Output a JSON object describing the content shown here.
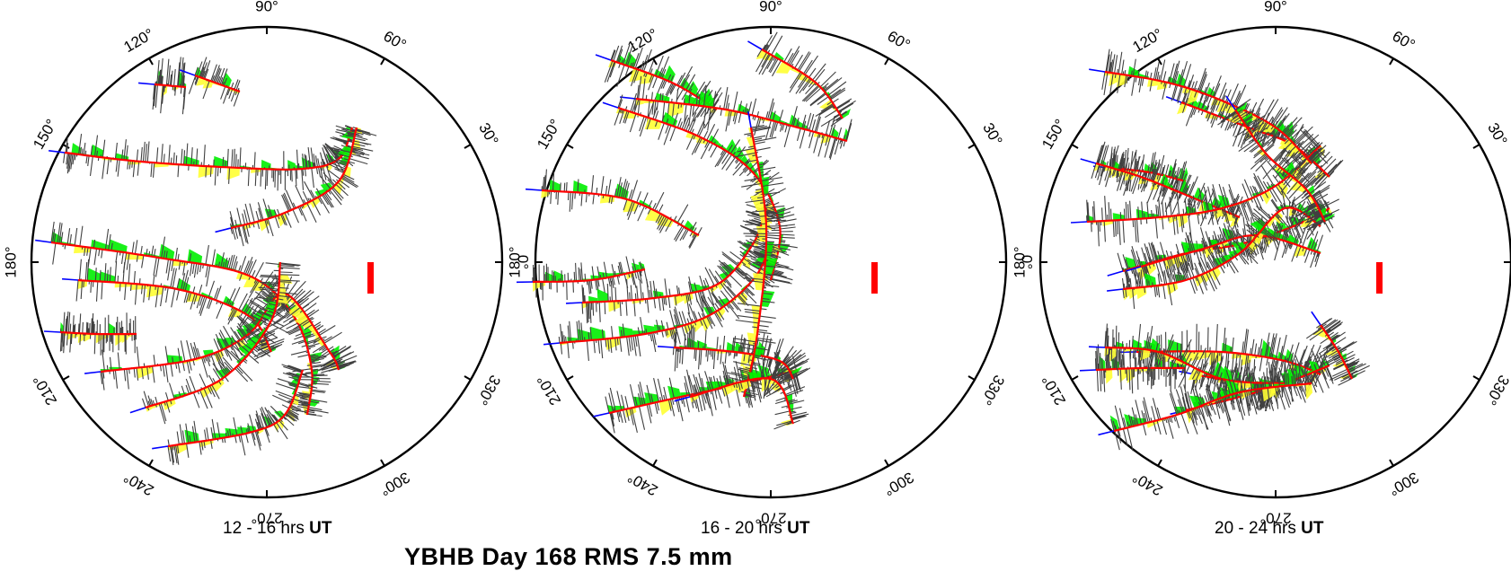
{
  "title": "YBHB Day 168 RMS 7.5 mm",
  "angle_labels": [
    "0°",
    "30°",
    "60°",
    "90°",
    "120°",
    "150°",
    "180°",
    "210°",
    "240°",
    "270°",
    "300°",
    "330°"
  ],
  "panels": [
    {
      "caption_range": "12 - 16 hrs",
      "caption_unit": "UT"
    },
    {
      "caption_range": "16 - 20 hrs",
      "caption_unit": "UT"
    },
    {
      "caption_range": "20 - 24 hrs",
      "caption_unit": "UT"
    }
  ],
  "colors": {
    "circle": "#000000",
    "track": "#ff0000",
    "residual": "#404040",
    "positive_fill": "#ffff33",
    "negative_fill": "#00ee00",
    "low_elevation": "#0000ff",
    "scale_bar": "#ff0000"
  }
}
